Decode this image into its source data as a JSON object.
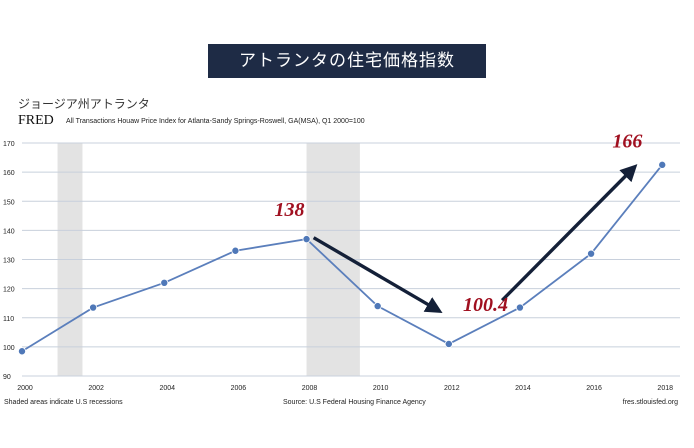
{
  "banner": {
    "title": "アトランタの住宅価格指数"
  },
  "header": {
    "subtitle": "ジョージア州アトランタ",
    "logo": "FRED",
    "description": "All Transactions Houaw Price Index for Atlanta-Sandy Springs-Roswell, GA(MSA), Q1 2000=100"
  },
  "footer": {
    "left": "Shaded areas indicate U.S recessions",
    "center": "Source: U.S Federal Housing Finance Agency",
    "right": "fres.stlouisfed.org"
  },
  "colors": {
    "line": "#5b7fbc",
    "marker": "#4f78b8",
    "grid": "#c8d0dc",
    "recession": "#e3e3e3",
    "annotation": "#a01020",
    "arrow": "#142038"
  },
  "chart_data": {
    "type": "line",
    "title": "All Transactions Houaw Price Index for Atlanta-Sandy Springs-Roswell, GA(MSA), Q1 2000=100",
    "x": [
      2000,
      2002,
      2004,
      2006,
      2008,
      2010,
      2012,
      2014,
      2016,
      2018
    ],
    "series": [
      {
        "values": [
          98.5,
          113.5,
          122,
          133,
          137,
          114,
          101,
          113.5,
          132,
          162.5
        ]
      }
    ],
    "xlim": [
      2000,
      2018.5
    ],
    "ylim": [
      90,
      170
    ],
    "x_ticks": [
      "2000",
      "2002",
      "2004",
      "2006",
      "2008",
      "2010",
      "2012",
      "2014",
      "2016",
      "2018"
    ],
    "y_ticks": [
      "90",
      "100",
      "110",
      "120",
      "130",
      "140",
      "150",
      "160",
      "170"
    ],
    "recessions": [
      [
        2001.0,
        2001.7
      ],
      [
        2008.0,
        2009.5
      ]
    ],
    "grid": true,
    "annotations": [
      {
        "text": "138",
        "x": 2007.1,
        "y": 145
      },
      {
        "text": "100.4",
        "x": 2012.4,
        "y": 112.3
      },
      {
        "text": "166",
        "x": 2016.6,
        "y": 168.5
      }
    ],
    "arrows": [
      {
        "from": [
          2008.2,
          137.5
        ],
        "to": [
          2011.7,
          112.5
        ]
      },
      {
        "from": [
          2013.5,
          116
        ],
        "to": [
          2017.2,
          161.5
        ]
      }
    ]
  }
}
